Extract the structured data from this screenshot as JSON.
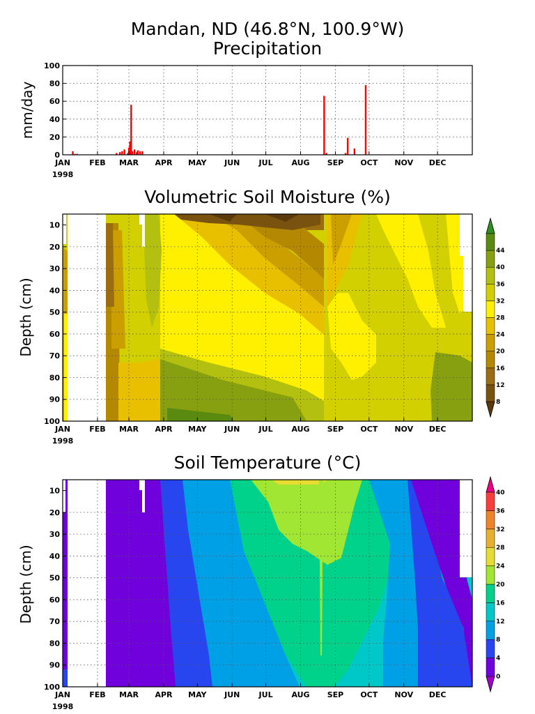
{
  "figure": {
    "title_line1": "Mandan, ND  (46.8°N, 100.9°W)",
    "title_line2": "Precipitation"
  },
  "chart_data": [
    {
      "type": "bar",
      "title": "Precipitation",
      "ylabel": "mm/day",
      "ylim": [
        0,
        100
      ],
      "yticks": [
        "0",
        "20",
        "40",
        "60",
        "80",
        "100"
      ],
      "xticks": [
        "JAN",
        "FEB",
        "MAR",
        "APR",
        "MAY",
        "JUN",
        "JUL",
        "AUG",
        "SEP",
        "OCT",
        "NOV",
        "DEC"
      ],
      "year_label": "1998",
      "grid": true,
      "bar_color": "#ff0000",
      "series": [
        {
          "x_day": [
            9,
            11,
            13,
            48,
            51,
            53,
            55,
            58,
            59,
            60,
            61,
            62,
            64,
            66,
            67,
            69,
            71,
            233,
            235,
            252,
            254,
            260,
            270
          ],
          "values": [
            4,
            1,
            1,
            2,
            3,
            4,
            6,
            2,
            8,
            15,
            56,
            4,
            6,
            3,
            5,
            4,
            4,
            66,
            2,
            2,
            19,
            7,
            78
          ]
        }
      ]
    },
    {
      "type": "heatmap",
      "title": "Volumetric Soil Moisture (%)",
      "ylabel": "Depth (cm)",
      "yticks": [
        "10",
        "20",
        "30",
        "40",
        "50",
        "60",
        "70",
        "80",
        "90",
        "100"
      ],
      "xticks": [
        "JAN",
        "FEB",
        "MAR",
        "APR",
        "MAY",
        "JUN",
        "JUL",
        "AUG",
        "SEP",
        "OCT",
        "NOV",
        "DEC"
      ],
      "year_label": "1998",
      "colorbar_labels": [
        "8",
        "12",
        "16",
        "20",
        "24",
        "28",
        "32",
        "36",
        "40",
        "44"
      ],
      "colorbar_colors": [
        "#5a3a0a",
        "#7a5210",
        "#9a6e10",
        "#b48800",
        "#cc9f00",
        "#e8c000",
        "#fff000",
        "#d2d000",
        "#b4c010",
        "#86a010",
        "#5a8a10",
        "#2f8f1f"
      ],
      "x_months": [
        1,
        2,
        3,
        4,
        5,
        6,
        7,
        8,
        9,
        10,
        11,
        12
      ],
      "depths_cm": [
        10,
        20,
        30,
        40,
        50,
        60,
        70,
        80,
        90,
        100
      ],
      "values": [
        [
          36,
          null,
          12,
          30,
          32,
          16,
          10,
          10,
          14,
          30,
          32,
          30
        ],
        [
          34,
          null,
          14,
          30,
          32,
          20,
          14,
          12,
          16,
          32,
          34,
          30
        ],
        [
          34,
          null,
          16,
          30,
          34,
          22,
          18,
          14,
          18,
          32,
          34,
          32
        ],
        [
          32,
          null,
          20,
          32,
          34,
          24,
          20,
          18,
          22,
          34,
          34,
          32
        ],
        [
          32,
          null,
          26,
          32,
          34,
          28,
          24,
          22,
          26,
          34,
          34,
          34
        ],
        [
          32,
          null,
          30,
          34,
          34,
          30,
          28,
          26,
          30,
          34,
          34,
          34
        ],
        [
          30,
          null,
          32,
          34,
          36,
          32,
          30,
          30,
          32,
          34,
          34,
          36
        ],
        [
          30,
          null,
          34,
          36,
          36,
          34,
          32,
          32,
          34,
          34,
          34,
          38
        ],
        [
          30,
          null,
          34,
          38,
          38,
          36,
          34,
          34,
          34,
          34,
          36,
          38
        ],
        [
          30,
          null,
          34,
          40,
          40,
          38,
          36,
          34,
          34,
          34,
          36,
          38
        ]
      ]
    },
    {
      "type": "heatmap",
      "title": "Soil Temperature (°C)",
      "ylabel": "Depth (cm)",
      "yticks": [
        "10",
        "20",
        "30",
        "40",
        "50",
        "60",
        "70",
        "80",
        "90",
        "100"
      ],
      "xticks": [
        "JAN",
        "FEB",
        "MAR",
        "APR",
        "MAY",
        "JUN",
        "JUL",
        "AUG",
        "SEP",
        "OCT",
        "NOV",
        "DEC"
      ],
      "year_label": "1998",
      "colorbar_labels": [
        "0",
        "4",
        "8",
        "12",
        "16",
        "20",
        "24",
        "28",
        "32",
        "36",
        "40"
      ],
      "colorbar_colors": [
        "#a000c8",
        "#7000dc",
        "#2846f0",
        "#00a0e6",
        "#00c8c8",
        "#00d28c",
        "#a0e632",
        "#e6dc32",
        "#e6af2d",
        "#f08228",
        "#fa3c3c",
        "#f00082"
      ],
      "x_months": [
        1,
        2,
        3,
        4,
        5,
        6,
        7,
        8,
        9,
        10,
        11,
        12
      ],
      "depths_cm": [
        10,
        20,
        30,
        40,
        50,
        60,
        70,
        80,
        90,
        100
      ],
      "values": [
        [
          0,
          null,
          0,
          4,
          12,
          16,
          20,
          22,
          22,
          12,
          8,
          0
        ],
        [
          0,
          null,
          0,
          4,
          10,
          16,
          20,
          22,
          20,
          12,
          8,
          0
        ],
        [
          0,
          null,
          0,
          4,
          10,
          14,
          20,
          20,
          18,
          14,
          8,
          2
        ],
        [
          0,
          null,
          0,
          2,
          8,
          14,
          18,
          18,
          18,
          14,
          8,
          2
        ],
        [
          0,
          null,
          0,
          2,
          8,
          12,
          16,
          18,
          16,
          14,
          8,
          2
        ],
        [
          0,
          null,
          0,
          0,
          6,
          12,
          16,
          16,
          16,
          14,
          8,
          4
        ],
        [
          0,
          null,
          0,
          0,
          6,
          10,
          14,
          16,
          16,
          14,
          8,
          4
        ],
        [
          0,
          null,
          0,
          0,
          4,
          10,
          14,
          14,
          14,
          14,
          8,
          4
        ],
        [
          0,
          null,
          0,
          0,
          4,
          8,
          12,
          14,
          14,
          12,
          8,
          4
        ],
        [
          0,
          null,
          0,
          0,
          2,
          8,
          12,
          12,
          12,
          12,
          8,
          4
        ]
      ]
    }
  ]
}
